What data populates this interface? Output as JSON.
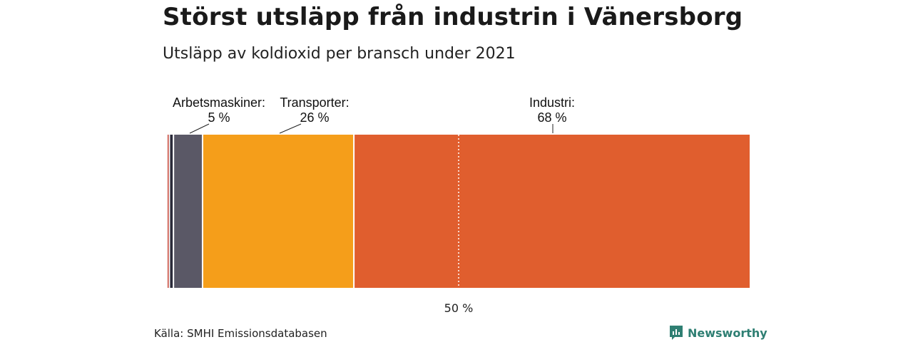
{
  "title": "Störst utsläpp från industrin i Vänersborg",
  "subtitle": "Utsläpp av koldioxid per bransch under 2021",
  "source": "Källa: SMHI Emissionsdatabasen",
  "brand": "Newsworthy",
  "colors": {
    "small_red": "#c0392b",
    "small_dark": "#2b2b3a",
    "arbetsmaskiner": "#5a5866",
    "transporter": "#f59e1a",
    "industri": "#e05e2e",
    "brand": "#2f7f73"
  },
  "chart_data": {
    "type": "bar",
    "stacked": true,
    "orientation": "horizontal",
    "xlim": [
      0,
      100
    ],
    "series": [
      {
        "value": 0.3,
        "color": "#c0392b"
      },
      {
        "value": 0.7,
        "color": "#2b2b3a"
      },
      {
        "name": "Arbetsmaskiner",
        "value": 5,
        "label": "5 %",
        "color": "#5a5866"
      },
      {
        "name": "Transporter",
        "value": 26,
        "label": "26 %",
        "color": "#f59e1a"
      },
      {
        "name": "Industri",
        "value": 68,
        "label": "68 %",
        "color": "#e05e2e"
      }
    ],
    "annotations": [
      {
        "series": "Arbetsmaskiner",
        "text": "Arbetsmaskiner:",
        "value_text": "5 %"
      },
      {
        "series": "Transporter",
        "text": "Transporter:",
        "value_text": "26 %"
      },
      {
        "series": "Industri",
        "text": "Industri:",
        "value_text": "68 %"
      }
    ],
    "reference_line": {
      "value": 50,
      "label": "50 %"
    }
  }
}
